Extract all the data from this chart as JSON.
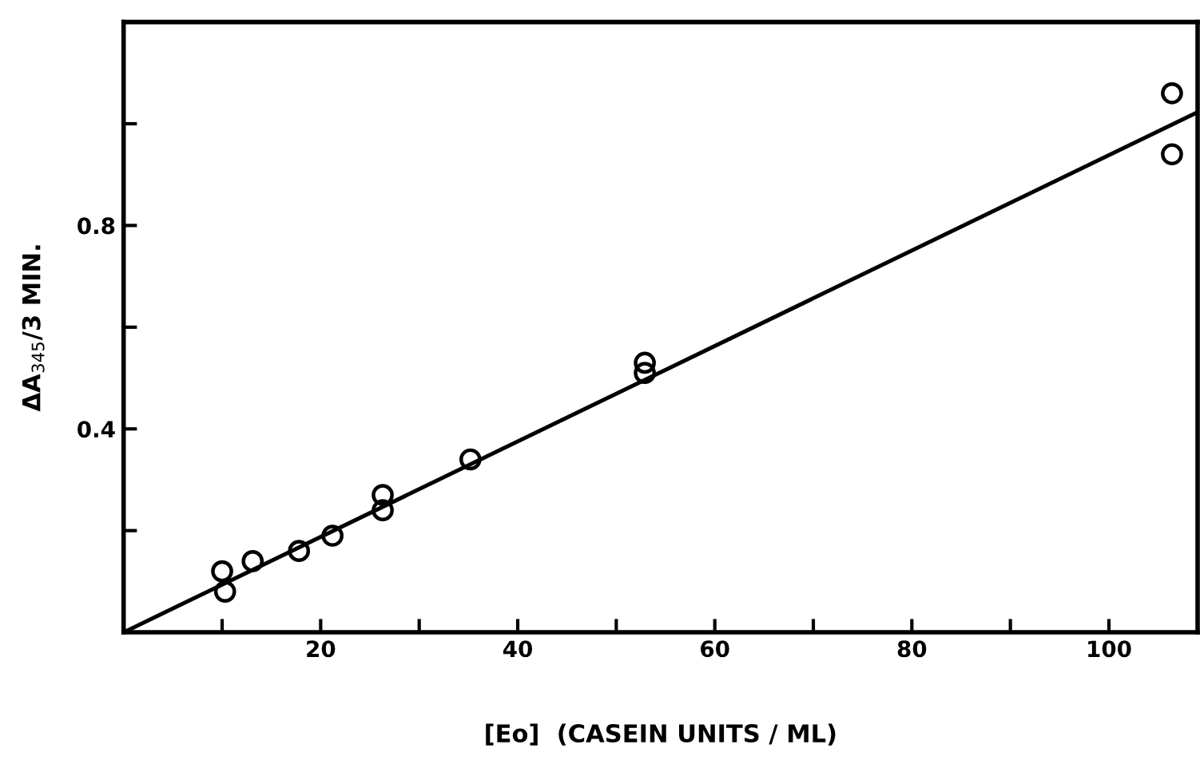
{
  "chart_data": {
    "type": "scatter",
    "xlabel": "[Eo]  (CASEIN UNITS / ML)",
    "ylabel": "ΔA$_{345}$/3 MIN.",
    "xlim": [
      0,
      109
    ],
    "ylim": [
      0,
      1.2
    ],
    "xticks": [
      {
        "value": 10,
        "label": null
      },
      20,
      {
        "value": 30,
        "label": null
      },
      40,
      {
        "value": 50,
        "label": null
      },
      60,
      {
        "value": 70,
        "label": null
      },
      80,
      {
        "value": 90,
        "label": null
      },
      100
    ],
    "yticks": [
      {
        "value": 0.2,
        "label": null
      },
      0.4,
      {
        "value": 0.6,
        "label": null
      },
      0.8,
      {
        "value": 1.0,
        "label": null
      }
    ],
    "grid": false,
    "legend": false,
    "series": [
      {
        "marker": "circle",
        "color": "#000000",
        "x": [
          10.0,
          10.3,
          13.1,
          17.8,
          21.2,
          26.3,
          26.3,
          35.2,
          52.9,
          52.9,
          106.4,
          106.4
        ],
        "values": [
          0.12,
          0.08,
          0.14,
          0.16,
          0.19,
          0.27,
          0.24,
          0.34,
          0.53,
          0.51,
          1.06,
          0.94
        ]
      },
      {
        "type": "line",
        "marker": "none",
        "line_style": "solid",
        "color": "#000000",
        "x": [
          0,
          108.7
        ],
        "values": [
          0,
          1.02
        ]
      }
    ]
  }
}
